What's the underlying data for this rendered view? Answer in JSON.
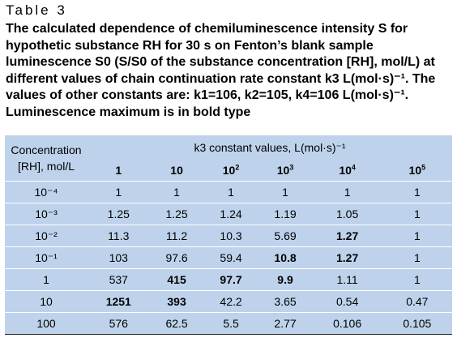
{
  "table_label": "Table 3",
  "caption": "The calculated dependence of chemiluminescence intensity S for hypothetic substance RH for 30 s on Fenton’s blank sample luminescence S0 (S/S0 of the substance concentration [RH], mol/L) at different values of chain continuation rate constant k3 L(mol·s)⁻¹. The values of other constants are: k1=106, k2=105, k4=106 L(mol·s)⁻¹. Luminescence maximum is in bold type",
  "header": {
    "row_label_line1": "Concentration",
    "row_label_line2": "[RH], mol/L",
    "group_label": "k3 constant values, L(mol·s)⁻¹",
    "columns": [
      {
        "base": "1",
        "exp": ""
      },
      {
        "base": "10",
        "exp": ""
      },
      {
        "base": "10",
        "exp": "2"
      },
      {
        "base": "10",
        "exp": "3"
      },
      {
        "base": "10",
        "exp": "4"
      },
      {
        "base": "10",
        "exp": "5"
      }
    ]
  },
  "rows": [
    {
      "conc": "10⁻⁴",
      "cells": [
        {
          "v": "1",
          "b": false
        },
        {
          "v": "1",
          "b": false
        },
        {
          "v": "1",
          "b": false
        },
        {
          "v": "1",
          "b": false
        },
        {
          "v": "1",
          "b": false
        },
        {
          "v": "1",
          "b": false
        }
      ]
    },
    {
      "conc": "10⁻³",
      "cells": [
        {
          "v": "1.25",
          "b": false
        },
        {
          "v": "1.25",
          "b": false
        },
        {
          "v": "1.24",
          "b": false
        },
        {
          "v": "1.19",
          "b": false
        },
        {
          "v": "1.05",
          "b": false
        },
        {
          "v": "1",
          "b": false
        }
      ]
    },
    {
      "conc": "10⁻²",
      "cells": [
        {
          "v": "11.3",
          "b": false
        },
        {
          "v": "11.2",
          "b": false
        },
        {
          "v": "10.3",
          "b": false
        },
        {
          "v": "5.69",
          "b": false
        },
        {
          "v": "1.27",
          "b": true
        },
        {
          "v": "1",
          "b": false
        }
      ]
    },
    {
      "conc": "10⁻¹",
      "cells": [
        {
          "v": "103",
          "b": false
        },
        {
          "v": "97.6",
          "b": false
        },
        {
          "v": "59.4",
          "b": false
        },
        {
          "v": "10.8",
          "b": true
        },
        {
          "v": "1.27",
          "b": true
        },
        {
          "v": "1",
          "b": false
        }
      ]
    },
    {
      "conc": "1",
      "cells": [
        {
          "v": "537",
          "b": false
        },
        {
          "v": "415",
          "b": true
        },
        {
          "v": "97.7",
          "b": true
        },
        {
          "v": "9.9",
          "b": true
        },
        {
          "v": "1.11",
          "b": false
        },
        {
          "v": "1",
          "b": false
        }
      ]
    },
    {
      "conc": "10",
      "cells": [
        {
          "v": "1251",
          "b": true
        },
        {
          "v": "393",
          "b": true
        },
        {
          "v": "42.2",
          "b": false
        },
        {
          "v": "3.65",
          "b": false
        },
        {
          "v": "0.54",
          "b": false
        },
        {
          "v": "0.47",
          "b": false
        }
      ]
    },
    {
      "conc": "100",
      "cells": [
        {
          "v": "576",
          "b": false
        },
        {
          "v": "62.5",
          "b": false
        },
        {
          "v": "5.5",
          "b": false
        },
        {
          "v": "2.77",
          "b": false
        },
        {
          "v": "0.106",
          "b": false
        },
        {
          "v": "0.105",
          "b": false
        }
      ]
    }
  ]
}
